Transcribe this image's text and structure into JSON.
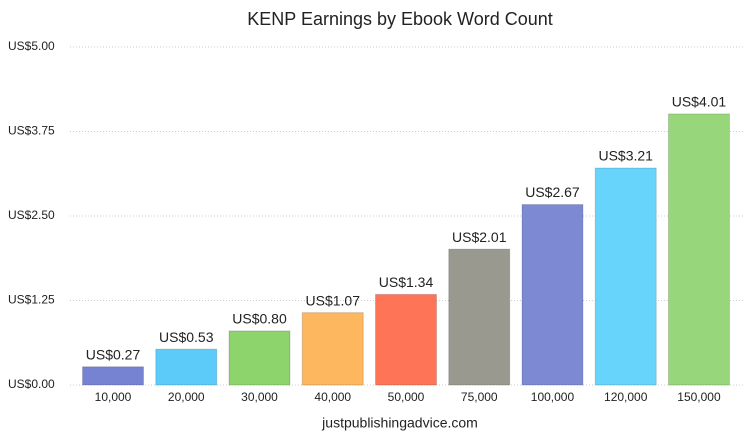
{
  "chart_data": {
    "type": "bar",
    "title": "KENP Earnings by Ebook Word Count",
    "categories": [
      "10,000",
      "20,000",
      "30,000",
      "40,000",
      "50,000",
      "75,000",
      "100,000",
      "120,000",
      "150,000"
    ],
    "values": [
      0.27,
      0.53,
      0.8,
      1.07,
      1.34,
      2.01,
      2.67,
      3.21,
      4.01
    ],
    "value_labels": [
      "US$0.27",
      "US$0.53",
      "US$0.80",
      "US$1.07",
      "US$1.34",
      "US$2.01",
      "US$2.67",
      "US$3.21",
      "US$4.01"
    ],
    "colors": [
      "#7683d3",
      "#5ccbfa",
      "#8dd46c",
      "#fdb75e",
      "#fd7457",
      "#9a9990",
      "#7e89d4",
      "#67d4fb",
      "#98d67b"
    ],
    "ylim": [
      0,
      5
    ],
    "yticks": [
      {
        "value": 0,
        "label": "US$0.00"
      },
      {
        "value": 1.25,
        "label": "US$1.25"
      },
      {
        "value": 2.5,
        "label": "US$2.50"
      },
      {
        "value": 3.75,
        "label": "US$3.75"
      },
      {
        "value": 5,
        "label": "US$5.00"
      }
    ],
    "grid": true,
    "source": "justpublishingadvice.com"
  }
}
